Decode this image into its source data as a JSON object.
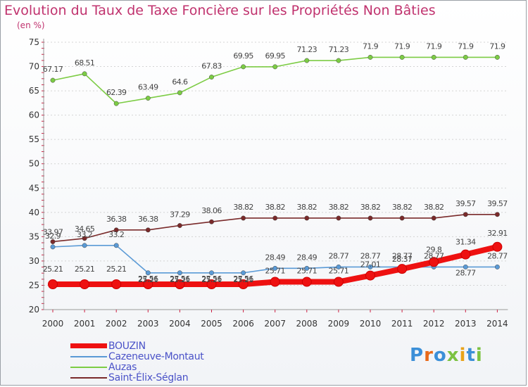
{
  "title": "Evolution du Taux de Taxe Foncière sur les Propriétés Non Bâties",
  "unit": "(en %)",
  "logo": {
    "text": "Proxiti",
    "colors": [
      "#3b8fd8",
      "#e86a1a",
      "#3b8fd8",
      "#7cc242",
      "#e8a31a",
      "#3b8fd8",
      "#7cc242"
    ]
  },
  "chart_data": {
    "type": "line",
    "title": "Evolution du Taux de Taxe Foncière sur les Propriétés Non Bâties",
    "ylabel": "(en %)",
    "xlabel": "",
    "categories": [
      "2000",
      "2001",
      "2002",
      "2003",
      "2004",
      "2005",
      "2006",
      "2007",
      "2008",
      "2009",
      "2010",
      "2011",
      "2012",
      "2013",
      "2014"
    ],
    "ylim": [
      20,
      75
    ],
    "yticks": [
      20,
      25,
      30,
      35,
      40,
      45,
      50,
      55,
      60,
      65,
      70,
      75
    ],
    "grid": "horizontal",
    "legend": "bottom-left",
    "series": [
      {
        "name": "BOUZIN",
        "color": "#ee1111",
        "values": [
          25.21,
          25.21,
          25.21,
          25.21,
          25.21,
          25.21,
          25.21,
          25.71,
          25.71,
          25.71,
          27.01,
          28.37,
          29.8,
          31.34,
          32.91
        ],
        "labels": [
          "25.21",
          "25.21",
          "25.21",
          "25.21",
          "25.21",
          "25.21",
          "25.21",
          "25.71",
          "25.71",
          "25.71",
          "27.01",
          "28.37",
          "29.8",
          "31.34",
          "32.91"
        ]
      },
      {
        "name": "Cazeneuve-Montaut",
        "color": "#5a9ad6",
        "values": [
          32.9,
          33.2,
          33.2,
          27.56,
          27.56,
          27.56,
          27.56,
          28.49,
          28.49,
          28.77,
          28.77,
          28.77,
          28.77,
          28.77,
          28.77
        ],
        "labels": [
          "32.9",
          "33.2",
          "33.2",
          "27.56",
          "27.56",
          "27.56",
          "27.56",
          "28.49",
          "28.49",
          "28.77",
          "28.77",
          "28.77",
          "28.77",
          "28.77",
          "28.77"
        ]
      },
      {
        "name": "Auzas",
        "color": "#7ccc44",
        "values": [
          67.17,
          68.51,
          62.39,
          63.49,
          64.6,
          67.83,
          69.95,
          69.95,
          71.23,
          71.23,
          71.9,
          71.9,
          71.9,
          71.9,
          71.9
        ],
        "labels": [
          "67.17",
          "68.51",
          "62.39",
          "63.49",
          "64.6",
          "67.83",
          "69.95",
          "69.95",
          "71.23",
          "71.23",
          "71.9",
          "71.9",
          "71.9",
          "71.9",
          "71.9"
        ]
      },
      {
        "name": "Saint-Élix-Séglan",
        "color": "#7a2a2a",
        "values": [
          33.97,
          34.65,
          36.38,
          36.38,
          37.29,
          38.06,
          38.82,
          38.82,
          38.82,
          38.82,
          38.82,
          38.82,
          38.82,
          39.57,
          39.57
        ],
        "labels": [
          "33.97",
          "34.65",
          "36.38",
          "36.38",
          "37.29",
          "38.06",
          "38.82",
          "38.82",
          "38.82",
          "38.82",
          "38.82",
          "38.82",
          "38.82",
          "39.57",
          "39.57"
        ]
      }
    ]
  }
}
